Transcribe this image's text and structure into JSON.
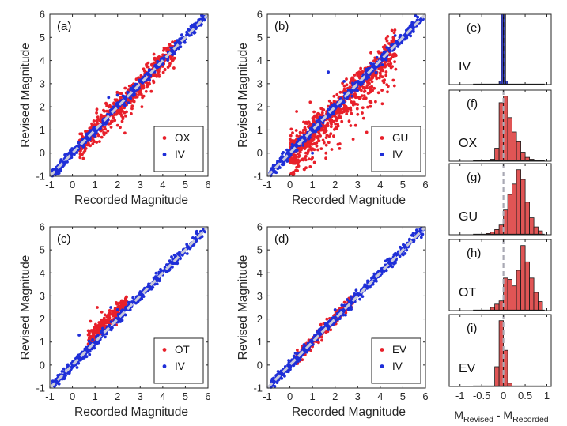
{
  "chart_data": [
    {
      "type": "scatter",
      "panel": "(a)",
      "xlabel": "Recorded Magnitude",
      "ylabel": "Revised Magnitude",
      "xlim": [
        -1,
        6
      ],
      "ylim": [
        -1,
        6
      ],
      "xticks": [
        "-1",
        "0",
        "1",
        "2",
        "3",
        "4",
        "5",
        "6"
      ],
      "yticks": [
        "-1",
        "0",
        "1",
        "2",
        "3",
        "4",
        "5",
        "6"
      ],
      "legend": "bottom-right",
      "reference_line": "y = x (dashed)",
      "series": [
        {
          "name": "OX",
          "color": "#e8202a",
          "spread": 0.42,
          "xrange": [
            0.3,
            4.6
          ],
          "outliers": [
            [
              0.6,
              0.2
            ],
            [
              0.9,
              0.4
            ],
            [
              1.4,
              0.8
            ],
            [
              2.0,
              1.2
            ],
            [
              2.6,
              1.7
            ],
            [
              3.1,
              2.4
            ],
            [
              1.2,
              0.5
            ],
            [
              0.8,
              1.0
            ]
          ]
        },
        {
          "name": "IV",
          "color": "#1f2fd8",
          "spread": 0.22,
          "xrange": [
            -0.9,
            5.9
          ],
          "outliers": [
            [
              1.6,
              2.4
            ],
            [
              2.0,
              2.5
            ],
            [
              3.4,
              3.6
            ]
          ]
        }
      ]
    },
    {
      "type": "scatter",
      "panel": "(b)",
      "xlabel": "Recorded Magnitude",
      "ylabel": "Revised Magnitude",
      "xlim": [
        -1,
        6
      ],
      "ylim": [
        -1,
        6
      ],
      "xticks": [
        "-1",
        "0",
        "1",
        "2",
        "3",
        "4",
        "5",
        "6"
      ],
      "yticks": [
        "-1",
        "0",
        "1",
        "2",
        "3",
        "4",
        "5",
        "6"
      ],
      "legend": "bottom-right",
      "reference_line": "y = x (dashed)",
      "series": [
        {
          "name": "GU",
          "color": "#e8202a",
          "spread": 0.5,
          "xrange": [
            0.0,
            4.7
          ],
          "outliers": [
            [
              0.6,
              -0.3
            ],
            [
              1.0,
              -0.2
            ],
            [
              2.2,
              0.2
            ],
            [
              2.8,
              0.6
            ],
            [
              3.4,
              0.9
            ],
            [
              1.6,
              0.0
            ],
            [
              0.3,
              1.8
            ],
            [
              0.9,
              2.2
            ],
            [
              2.5,
              3.2
            ]
          ]
        },
        {
          "name": "IV",
          "color": "#1f2fd8",
          "spread": 0.22,
          "xrange": [
            -0.9,
            5.9
          ],
          "outliers": [
            [
              1.7,
              3.5
            ],
            [
              2.4,
              3.1
            ],
            [
              1.0,
              0.0
            ]
          ]
        }
      ]
    },
    {
      "type": "scatter",
      "panel": "(c)",
      "xlabel": "Recorded Magnitude",
      "ylabel": "Revised Magnitude",
      "xlim": [
        -1,
        6
      ],
      "ylim": [
        -1,
        6
      ],
      "xticks": [
        "-1",
        "0",
        "1",
        "2",
        "3",
        "4",
        "5",
        "6"
      ],
      "yticks": [
        "-1",
        "0",
        "1",
        "2",
        "3",
        "4",
        "5",
        "6"
      ],
      "legend": "bottom-right",
      "reference_line": "y = x (dashed)",
      "series": [
        {
          "name": "OT",
          "color": "#e8202a",
          "spread": 0.3,
          "offset": 0.35,
          "xrange": [
            0.7,
            2.4
          ],
          "outliers": [
            [
              1.1,
              2.5
            ],
            [
              1.3,
              2.3
            ],
            [
              0.8,
              1.9
            ]
          ]
        },
        {
          "name": "IV",
          "color": "#1f2fd8",
          "spread": 0.22,
          "xrange": [
            -0.9,
            5.9
          ],
          "outliers": [
            [
              1.7,
              2.5
            ],
            [
              2.0,
              2.4
            ],
            [
              0.3,
              1.3
            ]
          ]
        }
      ]
    },
    {
      "type": "scatter",
      "panel": "(d)",
      "xlabel": "Recorded Magnitude",
      "ylabel": "Revised Magnitude",
      "xlim": [
        -1,
        6
      ],
      "ylim": [
        -1,
        6
      ],
      "xticks": [
        "-1",
        "0",
        "1",
        "2",
        "3",
        "4",
        "5",
        "6"
      ],
      "yticks": [
        "-1",
        "0",
        "1",
        "2",
        "3",
        "4",
        "5",
        "6"
      ],
      "legend": "bottom-right",
      "reference_line": "y = x (dashed)",
      "series": [
        {
          "name": "EV",
          "color": "#e8202a",
          "spread": 0.2,
          "xrange": [
            0.3,
            2.8
          ],
          "outliers": [
            [
              1.0,
              0.8
            ],
            [
              1.5,
              1.8
            ]
          ]
        },
        {
          "name": "IV",
          "color": "#1f2fd8",
          "spread": 0.22,
          "xrange": [
            -0.9,
            5.9
          ],
          "outliers": [
            [
              2.0,
              2.4
            ],
            [
              2.3,
              2.6
            ]
          ]
        }
      ]
    },
    {
      "type": "bar",
      "panel": "(e)",
      "label": "IV",
      "color": "#3a44c8",
      "xlim": [
        -1.25,
        1.1
      ],
      "bin_edges": [
        -0.1,
        -0.05,
        0.0,
        0.05,
        0.1
      ],
      "values": [
        0.05,
        1.0,
        1.0,
        0.05
      ]
    },
    {
      "type": "bar",
      "panel": "(f)",
      "label": "OX",
      "color": "#e05555",
      "xlim": [
        -1.25,
        1.1
      ],
      "bin_edges": [
        -0.3,
        -0.2,
        -0.1,
        0.0,
        0.1,
        0.2,
        0.3,
        0.4,
        0.5,
        0.6,
        0.7
      ],
      "values": [
        0.03,
        0.2,
        0.9,
        1.0,
        0.67,
        0.45,
        0.3,
        0.14,
        0.06,
        0.03
      ]
    },
    {
      "type": "bar",
      "panel": "(g)",
      "label": "GU",
      "color": "#e05555",
      "xlim": [
        -1.25,
        1.1
      ],
      "bin_edges": [
        -0.4,
        -0.3,
        -0.2,
        -0.1,
        0.0,
        0.1,
        0.2,
        0.3,
        0.4,
        0.5,
        0.6,
        0.7,
        0.8,
        0.9
      ],
      "values": [
        0.02,
        0.04,
        0.08,
        0.15,
        0.38,
        0.62,
        0.78,
        1.0,
        0.85,
        0.5,
        0.26,
        0.12,
        0.06
      ]
    },
    {
      "type": "bar",
      "panel": "(h)",
      "label": "OT",
      "color": "#e05555",
      "xlim": [
        -1.25,
        1.1
      ],
      "bin_edges": [
        -0.3,
        -0.2,
        -0.1,
        0.0,
        0.1,
        0.2,
        0.3,
        0.4,
        0.5,
        0.6,
        0.7,
        0.8,
        0.9
      ],
      "values": [
        0.05,
        0.1,
        0.15,
        0.5,
        0.48,
        0.38,
        0.62,
        1.0,
        0.75,
        0.5,
        0.28,
        0.14
      ]
    },
    {
      "type": "bar",
      "panel": "(i)",
      "label": "EV",
      "color": "#e05555",
      "xlim": [
        -1.25,
        1.1
      ],
      "xticks": [
        "-1",
        "-0.5",
        "0",
        "0.5",
        "1"
      ],
      "bin_edges": [
        -0.2,
        -0.1,
        0.0,
        0.1,
        0.2
      ],
      "values": [
        0.3,
        1.0,
        0.55,
        0.05
      ]
    }
  ],
  "hist_xlabel": {
    "main_1": "M",
    "sub_1": "Revised",
    "sep": " - ",
    "main_2": "M",
    "sub_2": "Recorded"
  }
}
